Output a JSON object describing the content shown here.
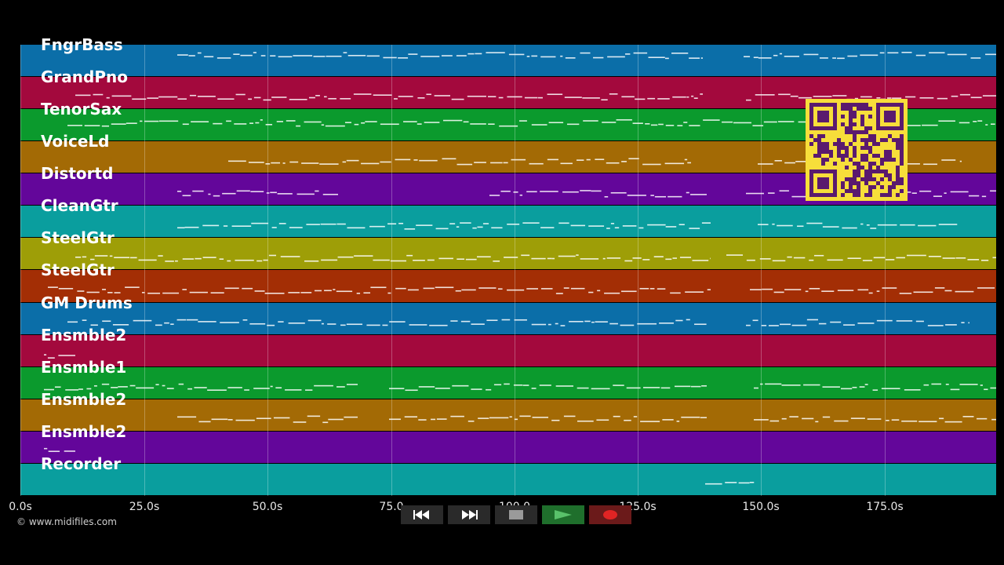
{
  "tracks": [
    {
      "name": "FngrBass",
      "color": "#0b6ea8"
    },
    {
      "name": "GrandPno",
      "color": "#a3093d"
    },
    {
      "name": "TenorSax",
      "color": "#0b9a2d"
    },
    {
      "name": "VoiceLd",
      "color": "#a36a05"
    },
    {
      "name": "Distortd",
      "color": "#63069a"
    },
    {
      "name": "CleanGtr",
      "color": "#0a9e9e"
    },
    {
      "name": "SteelGtr",
      "color": "#9e9e07"
    },
    {
      "name": "SteelGtr",
      "color": "#a32e05"
    },
    {
      "name": "GM Drums",
      "color": "#0b6ea8"
    },
    {
      "name": "Ensmble2",
      "color": "#a3093d"
    },
    {
      "name": "Ensmble1",
      "color": "#0b9a2d"
    },
    {
      "name": "Ensmble2",
      "color": "#a36a05"
    },
    {
      "name": "Ensmble2",
      "color": "#63069a"
    },
    {
      "name": "Recorder",
      "color": "#0a9e9e"
    }
  ],
  "timeline": {
    "ticks": [
      "0.0s",
      "25.0s",
      "50.0s",
      "75.0",
      "100.0",
      "125.0s",
      "150.0s",
      "175.0s"
    ]
  },
  "copyright": "© www.midifiles.com",
  "transport": {
    "buttons": [
      {
        "icon": "rewind-icon"
      },
      {
        "icon": "fast-forward-icon"
      },
      {
        "icon": "stop-icon"
      },
      {
        "icon": "play-icon"
      },
      {
        "icon": "record-icon"
      }
    ]
  },
  "colors": {
    "background": "#000000",
    "note": "#ffffff",
    "qr": "#f7de3a"
  }
}
